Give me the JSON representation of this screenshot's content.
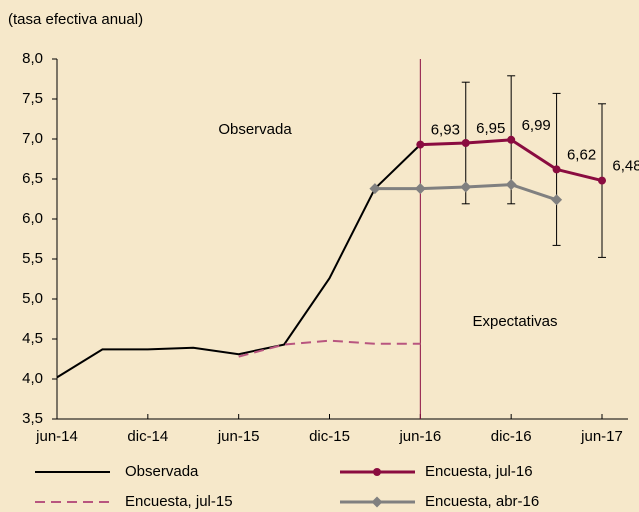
{
  "chart_data": {
    "type": "line",
    "title": "(tasa efectiva anual)",
    "categories": [
      "jun-14",
      null,
      "dic-14",
      null,
      "jun-15",
      null,
      "dic-15",
      null,
      "jun-16",
      null,
      "dic-16",
      null,
      "jun-17"
    ],
    "series": [
      {
        "name": "Observada",
        "color": "#000000",
        "values": [
          4.02,
          4.37,
          4.37,
          4.39,
          4.31,
          4.43,
          5.26,
          6.38,
          6.93,
          null,
          null,
          null,
          null
        ]
      },
      {
        "name": "Encuesta, jul-15",
        "color": "#b8557f",
        "dash": true,
        "values": [
          null,
          null,
          null,
          null,
          4.28,
          4.43,
          4.48,
          4.44,
          4.44,
          null,
          null,
          null,
          null
        ]
      },
      {
        "name": "Encuesta, jul-16",
        "color": "#8a0c40",
        "marker": "circle",
        "values": [
          null,
          null,
          null,
          null,
          null,
          null,
          null,
          null,
          6.93,
          6.95,
          6.99,
          6.62,
          6.48
        ],
        "value_labels": [
          null,
          null,
          null,
          null,
          null,
          null,
          null,
          null,
          "6,93",
          "6,95",
          "6,99",
          "6,62",
          "6,48"
        ],
        "errors": [
          null,
          null,
          null,
          null,
          null,
          null,
          null,
          null,
          null,
          0.76,
          0.8,
          0.95,
          0.96
        ]
      },
      {
        "name": "Encuesta, abr-16",
        "color": "#808080",
        "marker": "diamond",
        "values": [
          null,
          null,
          null,
          null,
          null,
          null,
          null,
          6.38,
          6.38,
          6.4,
          6.43,
          6.24,
          null
        ]
      }
    ],
    "ylim": [
      3.5,
      8.0
    ],
    "yticks": [
      {
        "value": 3.5,
        "label": "3,5"
      },
      {
        "value": 4.0,
        "label": "4,0"
      },
      {
        "value": 4.5,
        "label": "4,5"
      },
      {
        "value": 5.0,
        "label": "5,0"
      },
      {
        "value": 5.5,
        "label": "5,5"
      },
      {
        "value": 6.0,
        "label": "6,0"
      },
      {
        "value": 6.5,
        "label": "6,5"
      },
      {
        "value": 7.0,
        "label": "7,0"
      },
      {
        "value": 7.5,
        "label": "7,5"
      },
      {
        "value": 8.0,
        "label": "8,0"
      }
    ],
    "vline": "jun-16",
    "annotations": [
      {
        "text": "Observada"
      },
      {
        "text": "Expectativas"
      }
    ],
    "legend": "bottom"
  }
}
